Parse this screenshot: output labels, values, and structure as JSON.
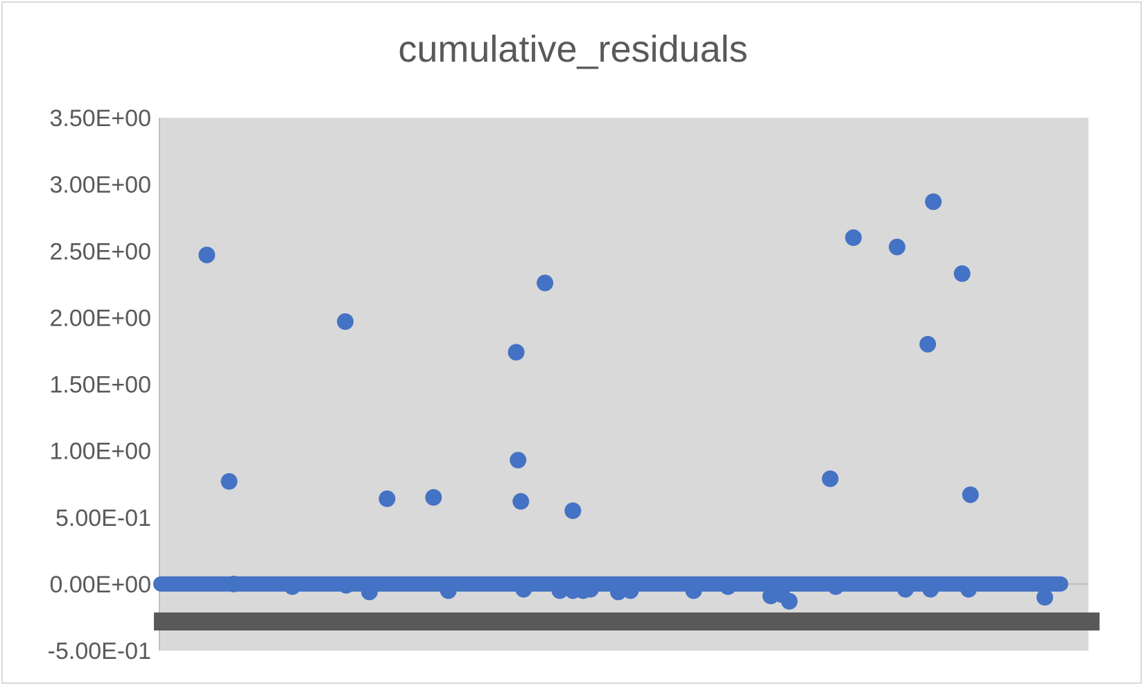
{
  "chart_data": {
    "type": "scatter",
    "title": "cumulative_residuals",
    "xlabel": "",
    "ylabel": "",
    "ylim": [
      -0.5,
      3.5
    ],
    "y_ticks": [
      "3.50E+00",
      "3.00E+00",
      "2.50E+00",
      "2.00E+00",
      "1.50E+00",
      "1.00E+00",
      "5.00E-01",
      "0.00E+00",
      "-5.00E-01"
    ],
    "x_tick_labels_note": "overlapping, illegible",
    "xlim": [
      0,
      1
    ],
    "grid": false,
    "legend": "none",
    "plot_background": "#d9d9d9",
    "marker_color": "#4472c4",
    "series": [
      {
        "values_x": [
          0.051,
          0.075,
          0.2,
          0.245,
          0.295,
          0.384,
          0.386,
          0.389,
          0.415,
          0.445,
          0.722,
          0.747,
          0.794,
          0.833,
          0.827,
          0.864,
          0.873,
          0.08,
          0.143,
          0.201,
          0.226,
          0.311,
          0.392,
          0.431,
          0.445,
          0.456,
          0.464,
          0.494,
          0.507,
          0.575,
          0.612,
          0.658,
          0.67,
          0.678,
          0.728,
          0.803,
          0.83,
          0.871,
          0.953
        ],
        "values_y": [
          2.47,
          0.77,
          1.97,
          0.64,
          0.65,
          1.74,
          0.93,
          0.62,
          2.26,
          0.55,
          0.79,
          2.6,
          2.53,
          2.87,
          1.8,
          2.33,
          0.67,
          0.0,
          -0.02,
          -0.01,
          -0.06,
          -0.05,
          -0.04,
          -0.05,
          -0.05,
          -0.05,
          -0.04,
          -0.06,
          -0.05,
          -0.05,
          -0.02,
          -0.09,
          -0.08,
          -0.13,
          -0.02,
          -0.04,
          -0.04,
          -0.04,
          -0.1
        ]
      }
    ]
  }
}
